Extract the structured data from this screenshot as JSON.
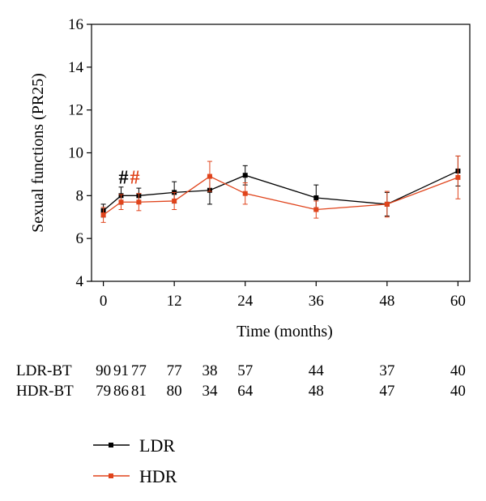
{
  "chart_data": {
    "type": "line",
    "xlabel": "Time (months)",
    "ylabel": "Sexual functions (PR25)",
    "xlim": [
      -2,
      62
    ],
    "ylim": [
      4,
      16
    ],
    "x_ticks": [
      "0",
      "12",
      "24",
      "36",
      "48",
      "60"
    ],
    "y_ticks": [
      "4",
      "6",
      "8",
      "10",
      "12",
      "14",
      "16"
    ],
    "grid": false,
    "legend_position": "bottom-left",
    "significance_marks": [
      {
        "text": "#",
        "x": 3,
        "y": 8.9,
        "color": "#000000"
      },
      {
        "text": "#",
        "x": 3,
        "y": 8.9,
        "color": "#e0441c"
      }
    ],
    "series": [
      {
        "name": "LDR",
        "color": "#000000",
        "marker": "square",
        "x": [
          0,
          3,
          6,
          12,
          18,
          24,
          36,
          48,
          60
        ],
        "y": [
          7.3,
          8.0,
          8.0,
          8.15,
          8.25,
          8.95,
          7.9,
          7.6,
          9.15
        ],
        "err": [
          0.3,
          0.4,
          0.35,
          0.5,
          0.65,
          0.45,
          0.6,
          0.55,
          0.7
        ]
      },
      {
        "name": "HDR",
        "color": "#e0441c",
        "marker": "square",
        "x": [
          0,
          3,
          6,
          12,
          18,
          24,
          36,
          48,
          60
        ],
        "y": [
          7.1,
          7.7,
          7.7,
          7.75,
          8.9,
          8.1,
          7.35,
          7.6,
          8.85
        ],
        "err": [
          0.35,
          0.35,
          0.4,
          0.4,
          0.7,
          0.5,
          0.4,
          0.6,
          1.0
        ]
      }
    ],
    "risk_table": {
      "rows": [
        {
          "label": "LDR-BT",
          "values": [
            "90",
            "91",
            "77",
            "77",
            "38",
            "57",
            "44",
            "37",
            "40"
          ]
        },
        {
          "label": "HDR-BT",
          "values": [
            "79",
            "86",
            "81",
            "80",
            "34",
            "64",
            "48",
            "47",
            "40"
          ]
        }
      ],
      "x": [
        0,
        3,
        6,
        12,
        18,
        24,
        36,
        48,
        60
      ]
    }
  }
}
